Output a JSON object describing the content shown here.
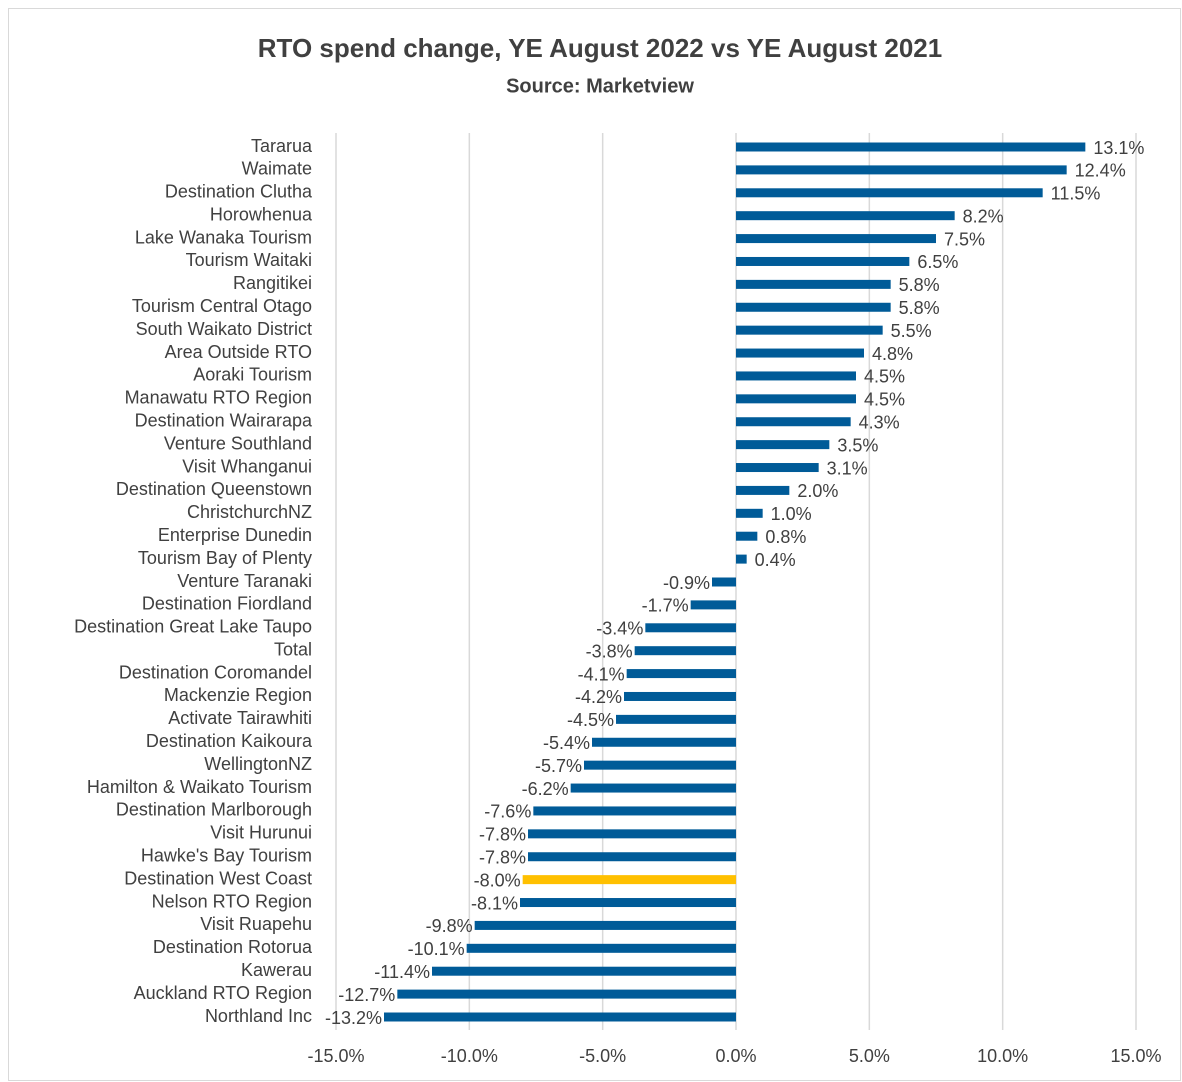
{
  "chart_data": {
    "type": "hbar",
    "title": "RTO spend change, YE August 2022 vs YE August 2021",
    "subtitle": "Source: Marketview",
    "categories": [
      "Tararua",
      "Waimate",
      "Destination Clutha",
      "Horowhenua",
      "Lake Wanaka Tourism",
      "Tourism Waitaki",
      "Rangitikei",
      "Tourism Central Otago",
      "South Waikato District",
      "Area Outside RTO",
      "Aoraki Tourism",
      "Manawatu RTO Region",
      "Destination Wairarapa",
      "Venture Southland",
      "Visit Whanganui",
      "Destination Queenstown",
      "ChristchurchNZ",
      "Enterprise Dunedin",
      "Tourism Bay of Plenty",
      "Venture Taranaki",
      "Destination Fiordland",
      "Destination Great Lake Taupo",
      "Total",
      "Destination Coromandel",
      "Mackenzie Region",
      "Activate Tairawhiti",
      "Destination Kaikoura",
      "WellingtonNZ",
      "Hamilton & Waikato Tourism",
      "Destination Marlborough",
      "Visit Hurunui",
      "Hawke's Bay Tourism",
      "Destination West Coast",
      "Nelson RTO Region",
      "Visit Ruapehu",
      "Destination Rotorua",
      "Kawerau",
      "Auckland RTO Region",
      "Northland Inc"
    ],
    "values": [
      13.1,
      12.4,
      11.5,
      8.2,
      7.5,
      6.5,
      5.8,
      5.8,
      5.5,
      4.8,
      4.5,
      4.5,
      4.3,
      3.5,
      3.1,
      2.0,
      1.0,
      0.8,
      0.4,
      -0.9,
      -1.7,
      -3.4,
      -3.8,
      -4.1,
      -4.2,
      -4.5,
      -5.4,
      -5.7,
      -6.2,
      -7.6,
      -7.8,
      -7.8,
      -8.0,
      -8.1,
      -9.8,
      -10.1,
      -11.4,
      -12.7,
      -13.2
    ],
    "value_labels": [
      "13.1%",
      "12.4%",
      "11.5%",
      "8.2%",
      "7.5%",
      "6.5%",
      "5.8%",
      "5.8%",
      "5.5%",
      "4.8%",
      "4.5%",
      "4.5%",
      "4.3%",
      "3.5%",
      "3.1%",
      "2.0%",
      "1.0%",
      "0.8%",
      "0.4%",
      "-0.9%",
      "-1.7%",
      "-3.4%",
      "-3.8%",
      "-4.1%",
      "-4.2%",
      "-4.5%",
      "-5.4%",
      "-5.7%",
      "-6.2%",
      "-7.6%",
      "-7.8%",
      "-7.8%",
      "-8.0%",
      "-8.1%",
      "-9.8%",
      "-10.1%",
      "-11.4%",
      "-12.7%",
      "-13.2%"
    ],
    "colors": [
      "#005b98",
      "#005b98",
      "#005b98",
      "#005b98",
      "#005b98",
      "#005b98",
      "#005b98",
      "#005b98",
      "#005b98",
      "#005b98",
      "#005b98",
      "#005b98",
      "#005b98",
      "#005b98",
      "#005b98",
      "#005b98",
      "#005b98",
      "#005b98",
      "#005b98",
      "#005b98",
      "#005b98",
      "#005b98",
      "#005b98",
      "#005b98",
      "#005b98",
      "#005b98",
      "#005b98",
      "#005b98",
      "#005b98",
      "#005b98",
      "#005b98",
      "#005b98",
      "#ffc000",
      "#005b98",
      "#005b98",
      "#005b98",
      "#005b98",
      "#005b98",
      "#005b98"
    ],
    "xlim": [
      -15,
      15
    ],
    "xticks": [
      {
        "value": -15,
        "label": "-15.0%"
      },
      {
        "value": -10,
        "label": "-10.0%"
      },
      {
        "value": -5,
        "label": "-5.0%"
      },
      {
        "value": 0,
        "label": "0.0%"
      },
      {
        "value": 5,
        "label": "5.0%"
      },
      {
        "value": 10,
        "label": "10.0%"
      },
      {
        "value": 15,
        "label": "15.0%"
      }
    ],
    "grid": true
  }
}
